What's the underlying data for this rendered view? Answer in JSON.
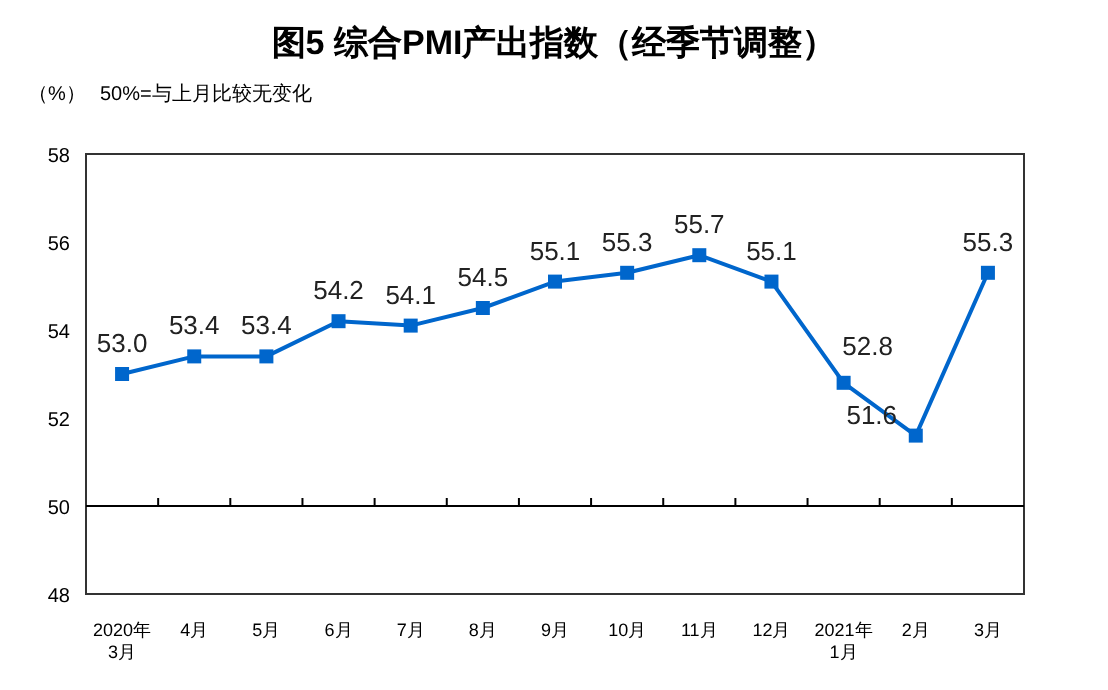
{
  "chart_data": {
    "type": "line",
    "title": "图5  综合PMI产出指数（经季节调整）",
    "ylabel": "（%）",
    "annotations": [
      "50%=与上月比较无变化"
    ],
    "categories": [
      "2020年\n3月",
      "4月",
      "5月",
      "6月",
      "7月",
      "8月",
      "9月",
      "10月",
      "11月",
      "12月",
      "2021年\n1月",
      "2月",
      "3月"
    ],
    "series": [
      {
        "color": "#0066cc",
        "values": [
          53.0,
          53.4,
          53.4,
          54.2,
          54.1,
          54.5,
          55.1,
          55.3,
          55.7,
          55.1,
          52.8,
          51.6,
          55.3
        ],
        "value_labels": [
          "53.0",
          "53.4",
          "53.4",
          "54.2",
          "54.1",
          "54.5",
          "55.1",
          "55.3",
          "55.7",
          "55.1",
          "52.8",
          "51.6",
          "55.3"
        ]
      }
    ],
    "ylim": [
      48,
      58
    ],
    "yticks": [
      48,
      50,
      52,
      54,
      56,
      58
    ],
    "ref_lines": [
      {
        "axis": "y",
        "value": 50,
        "color": "#000000"
      }
    ],
    "marker": "square",
    "line_style": "solid",
    "grid": false
  }
}
